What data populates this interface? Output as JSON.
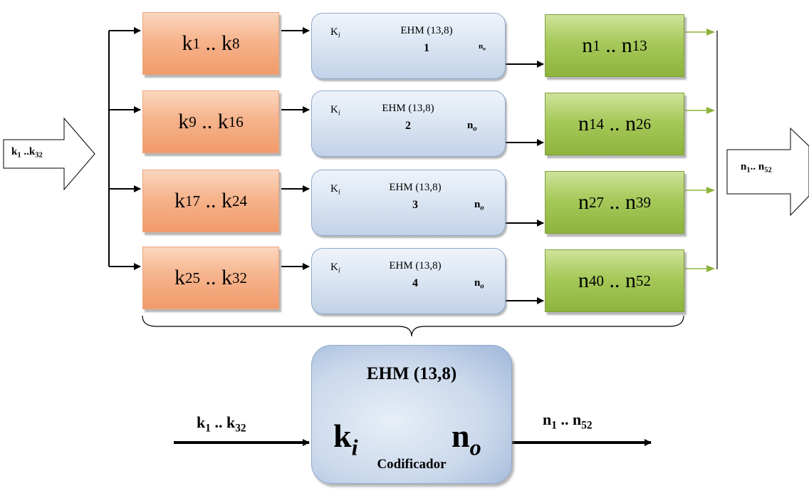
{
  "input_label": {
    "base": "k",
    "first": "1",
    "sep": " ..",
    "last_base": "k",
    "last": "32"
  },
  "output_label": {
    "base": "n",
    "first": "1",
    "sep": ".. ",
    "last_base": "n",
    "last": "52"
  },
  "k_blocks": [
    {
      "a": "1",
      "b": "8"
    },
    {
      "a": "9",
      "b": "16"
    },
    {
      "a": "17",
      "b": "24"
    },
    {
      "a": "25",
      "b": "32"
    }
  ],
  "encoders": [
    {
      "ki": "K",
      "ki_sub": "i",
      "title": "EHM (13,8)",
      "num": "1",
      "no": "n",
      "no_sub": "o"
    },
    {
      "ki": "K",
      "ki_sub": "i",
      "title": "EHM (13,8)",
      "num": "2",
      "no": "n",
      "no_sub": "o"
    },
    {
      "ki": "K",
      "ki_sub": "i",
      "title": "EHM (13,8)",
      "num": "3",
      "no": "n",
      "no_sub": "o"
    },
    {
      "ki": "K",
      "ki_sub": "i",
      "title": "EHM (13,8)",
      "num": "4",
      "no": "n",
      "no_sub": "o"
    }
  ],
  "n_blocks": [
    {
      "a": "1",
      "b": "13"
    },
    {
      "a": "14",
      "b": "26"
    },
    {
      "a": "27",
      "b": "39"
    },
    {
      "a": "40",
      "b": "52"
    }
  ],
  "main": {
    "title": "EHM (13,8)",
    "ki": "k",
    "ki_sub": "i",
    "no": "n",
    "no_sub": "o",
    "caption": "Codificador",
    "in_label": {
      "base": "k",
      "first": "1",
      "sep": " .. ",
      "last_base": "k",
      "last": "32"
    },
    "out_label": {
      "base": "n",
      "first": "1",
      "sep": " .. ",
      "last_base": "n",
      "last": "52"
    }
  },
  "colors": {
    "arrow": "#000000",
    "green_arrow": "#8db43c"
  }
}
